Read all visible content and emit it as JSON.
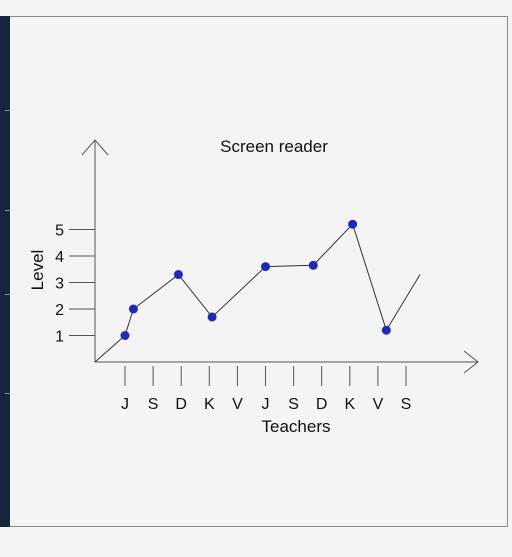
{
  "chart_data": {
    "type": "line",
    "title": "Screen reader",
    "xlabel": "Teachers",
    "ylabel": "Level",
    "categories": [
      "J",
      "S",
      "D",
      "K",
      "V",
      "J",
      "S",
      "D",
      "K",
      "V",
      "S"
    ],
    "y_ticks": [
      1,
      2,
      3,
      4,
      5
    ],
    "ylim": [
      0,
      8.5
    ],
    "grid": false,
    "series": [
      {
        "x": [
          0.5,
          0.8,
          2.4,
          3.6,
          5.5,
          7.2,
          8.6,
          9.8,
          11.0
        ],
        "y": [
          1.0,
          2.0,
          3.3,
          1.7,
          3.6,
          3.65,
          5.2,
          1.2,
          3.3
        ],
        "markers": [
          true,
          true,
          true,
          true,
          true,
          true,
          true,
          true,
          false
        ]
      }
    ]
  },
  "colors": {
    "marker": "#2029b5",
    "line": "#333333",
    "axis": "#555555",
    "sidebar": "#16243d"
  }
}
